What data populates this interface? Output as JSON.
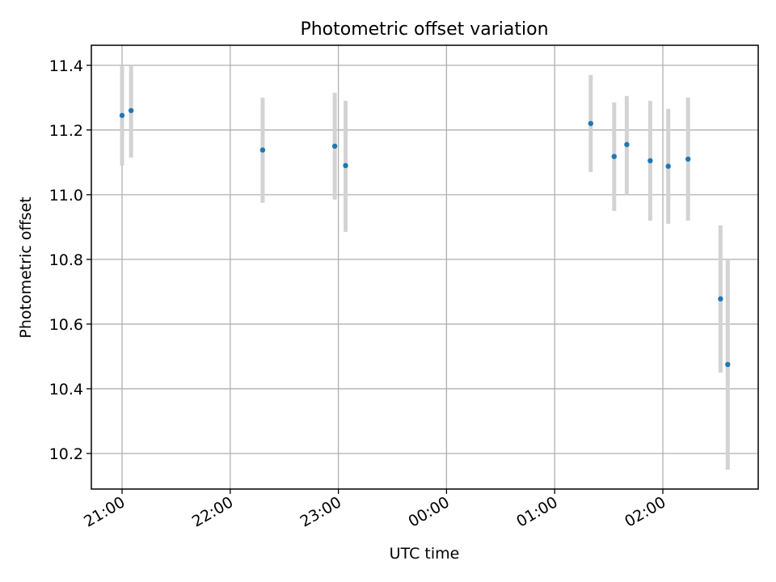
{
  "chart_data": {
    "type": "scatter",
    "title": "Photometric offset variation",
    "xlabel": "UTC time",
    "ylabel": "Photometric offset",
    "x_ticks": [
      "21:00",
      "22:00",
      "23:00",
      "00:00",
      "01:00",
      "02:00"
    ],
    "y_ticks": [
      "10.2",
      "10.4",
      "10.6",
      "10.8",
      "11.0",
      "11.2",
      "11.4"
    ],
    "grid": true,
    "marker_color": "#1f77b4",
    "errorbar_color": "#d3d3d3",
    "series": [
      {
        "points": [
          {
            "time": "21:00",
            "y": 11.245,
            "lo": 11.09,
            "hi": 11.4
          },
          {
            "time": "21:05",
            "y": 11.26,
            "lo": 11.115,
            "hi": 11.4
          },
          {
            "time": "22:18",
            "y": 11.138,
            "lo": 10.975,
            "hi": 11.3
          },
          {
            "time": "22:58",
            "y": 11.15,
            "lo": 10.985,
            "hi": 11.315
          },
          {
            "time": "23:04",
            "y": 11.09,
            "lo": 10.885,
            "hi": 11.29
          },
          {
            "time": "01:20",
            "y": 11.22,
            "lo": 11.07,
            "hi": 11.37
          },
          {
            "time": "01:33",
            "y": 11.118,
            "lo": 10.95,
            "hi": 11.285
          },
          {
            "time": "01:40",
            "y": 11.155,
            "lo": 11.0,
            "hi": 11.305
          },
          {
            "time": "01:53",
            "y": 11.105,
            "lo": 10.92,
            "hi": 11.29
          },
          {
            "time": "02:03",
            "y": 11.088,
            "lo": 10.91,
            "hi": 11.265
          },
          {
            "time": "02:14",
            "y": 11.11,
            "lo": 10.92,
            "hi": 11.3
          },
          {
            "time": "02:32",
            "y": 10.678,
            "lo": 10.45,
            "hi": 10.905
          },
          {
            "time": "02:36",
            "y": 10.475,
            "lo": 10.15,
            "hi": 10.8
          }
        ]
      }
    ]
  }
}
